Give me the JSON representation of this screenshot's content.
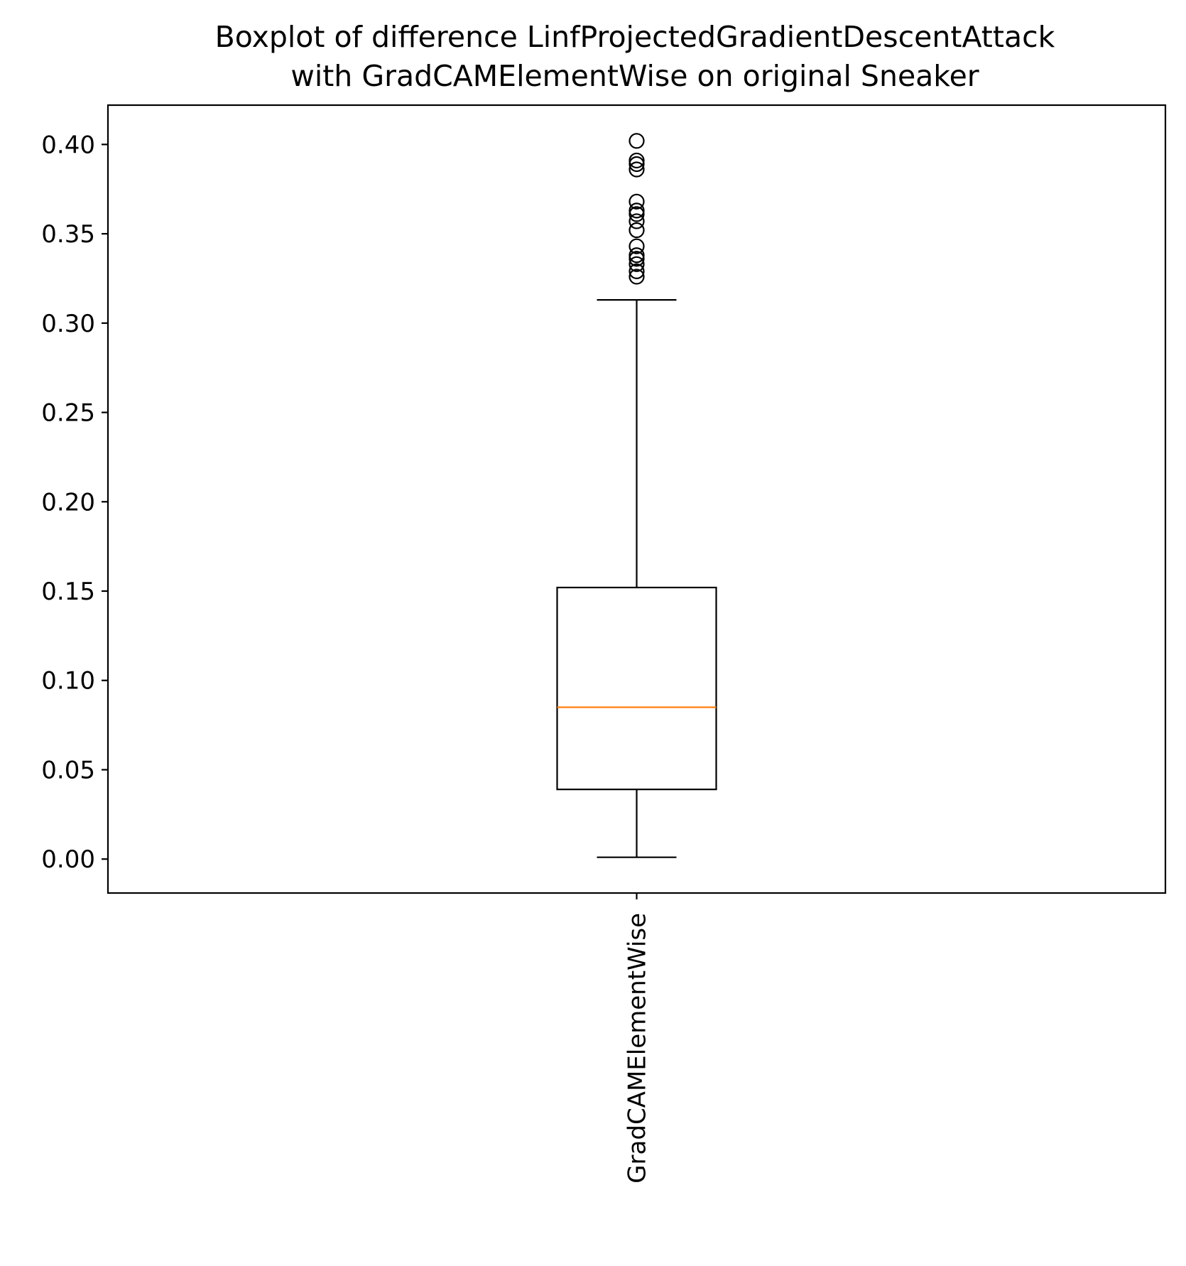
{
  "chart_data": {
    "type": "box",
    "title": "Boxplot of difference LinfProjectedGradientDescentAttack with GradCAMElementWise on original Sneaker",
    "title_lines": [
      "Boxplot of difference LinfProjectedGradientDescentAttack",
      "with GradCAMElementWise on original Sneaker"
    ],
    "xlabel": "",
    "ylabel": "",
    "ylim": [
      -0.019,
      0.422
    ],
    "yticks": [
      0.0,
      0.05,
      0.1,
      0.15,
      0.2,
      0.25,
      0.3,
      0.35,
      0.4
    ],
    "ytick_labels": [
      "0.00",
      "0.05",
      "0.10",
      "0.15",
      "0.20",
      "0.25",
      "0.30",
      "0.35",
      "0.40"
    ],
    "categories": [
      "GradCAMElementWise"
    ],
    "grid": false,
    "colors": {
      "box": "#000000",
      "median": "#ff7f0e",
      "whisker": "#000000",
      "flier": "#000000"
    },
    "boxes": [
      {
        "label": "GradCAMElementWise",
        "whisker_low": 0.001,
        "q1": 0.039,
        "median": 0.085,
        "q3": 0.152,
        "whisker_high": 0.313,
        "fliers": [
          0.326,
          0.329,
          0.333,
          0.336,
          0.338,
          0.343,
          0.352,
          0.357,
          0.361,
          0.363,
          0.368,
          0.386,
          0.389,
          0.391,
          0.402
        ]
      }
    ]
  }
}
